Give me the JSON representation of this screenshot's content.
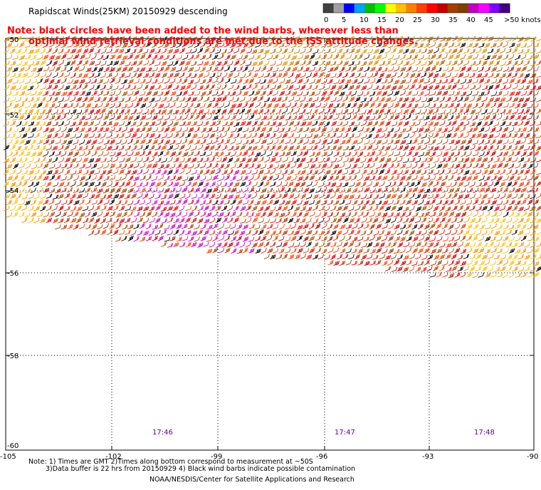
{
  "title": "Rapidscat Winds(25KM) 20150929 descending",
  "note": {
    "line1": "Note: black circles have been added to the wind barbs, wherever less than",
    "line2": "optimal wind retrieval conditions are met due to the ISS attitude changes."
  },
  "colorbar": {
    "labels": [
      "0",
      "5",
      "10",
      "15",
      "20",
      "25",
      "30",
      "35",
      "40",
      "45",
      ">50 knots"
    ],
    "colors": [
      "#404040",
      "#a0a0a0",
      "#0000ff",
      "#00a0ff",
      "#00c000",
      "#00ff00",
      "#ffff00",
      "#ffc000",
      "#ff8000",
      "#ff4000",
      "#ff0000",
      "#c00000",
      "#a04000",
      "#804000",
      "#c000c0",
      "#ff00ff",
      "#8000ff",
      "#400080"
    ]
  },
  "y_ticks": [
    "-50",
    "-52",
    "-54",
    "-56",
    "-58",
    "-60"
  ],
  "x_ticks": [
    "-105",
    "-102",
    "-99",
    "-96",
    "-93",
    "-90"
  ],
  "times": [
    "17:46",
    "17:47",
    "17:48"
  ],
  "footer": {
    "line1": "Note: 1) Times are GMT 2)Times along bottom correspond to measurement at ~50S",
    "line2": "3)Data buffer is 22 hrs from 20150929 4) Black wind barbs indicate possible contamination",
    "line3": "NOAA/NESDIS/Center for Satellite Applications and Research"
  }
}
